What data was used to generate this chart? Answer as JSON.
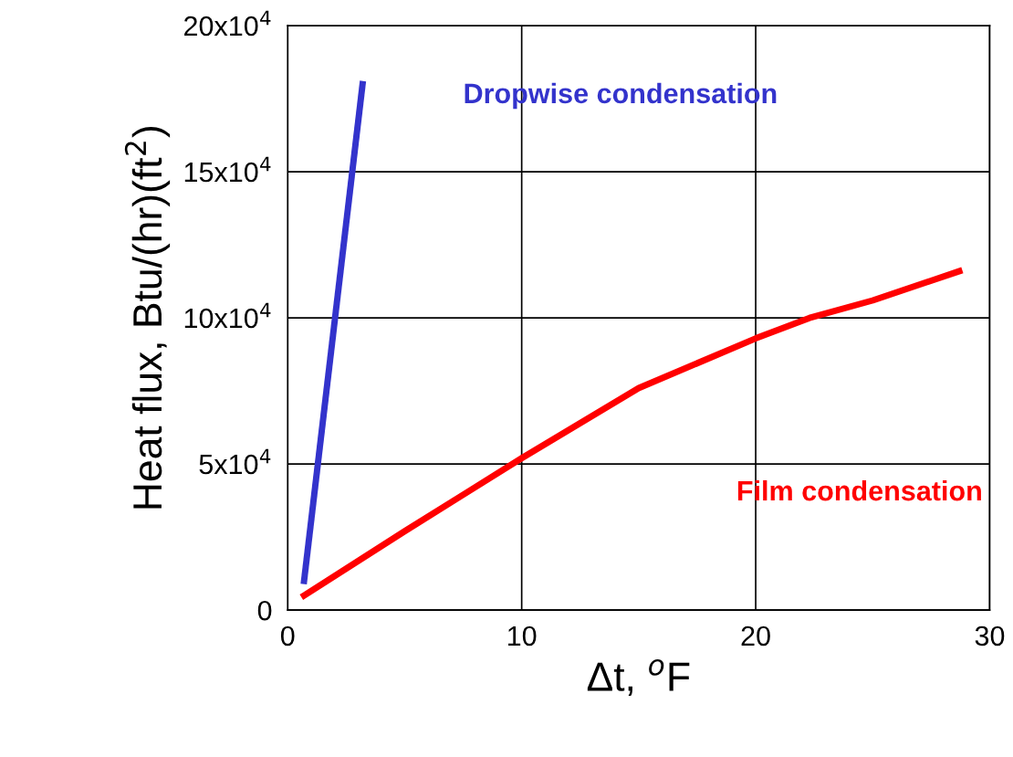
{
  "chart_data": {
    "type": "line",
    "xlabel": "Δt, $^{o}$F",
    "ylabel": "Heat flux, Btu/(hr)(ft$^{2}$)",
    "xlim": [
      0,
      30
    ],
    "xticks": [
      0,
      10,
      20,
      30
    ],
    "ylim": [
      0,
      200000
    ],
    "yticks": [
      0,
      {
        "value": 50000,
        "label": "5x10$^{4}$"
      },
      {
        "value": 100000,
        "label": "10x10$^{4}$"
      },
      {
        "value": 150000,
        "label": "15x10$^{4}$"
      },
      {
        "value": 200000,
        "label": "20x10$^{4}$"
      }
    ],
    "grid": true,
    "legend": false,
    "marker": "none",
    "line_style": "solid",
    "series": [
      {
        "name": "Dropwise condensation",
        "color": "#3333cc",
        "x": [
          0.7,
          3.2
        ],
        "values": [
          10000,
          180000
        ]
      },
      {
        "name": "Film condensation",
        "color": "#ff0000",
        "x": [
          0.7,
          5,
          10,
          15,
          20,
          22.3,
          25,
          28.7
        ],
        "values": [
          5000,
          27000,
          52000,
          76000,
          93000,
          100000,
          106000,
          116000
        ]
      }
    ]
  }
}
